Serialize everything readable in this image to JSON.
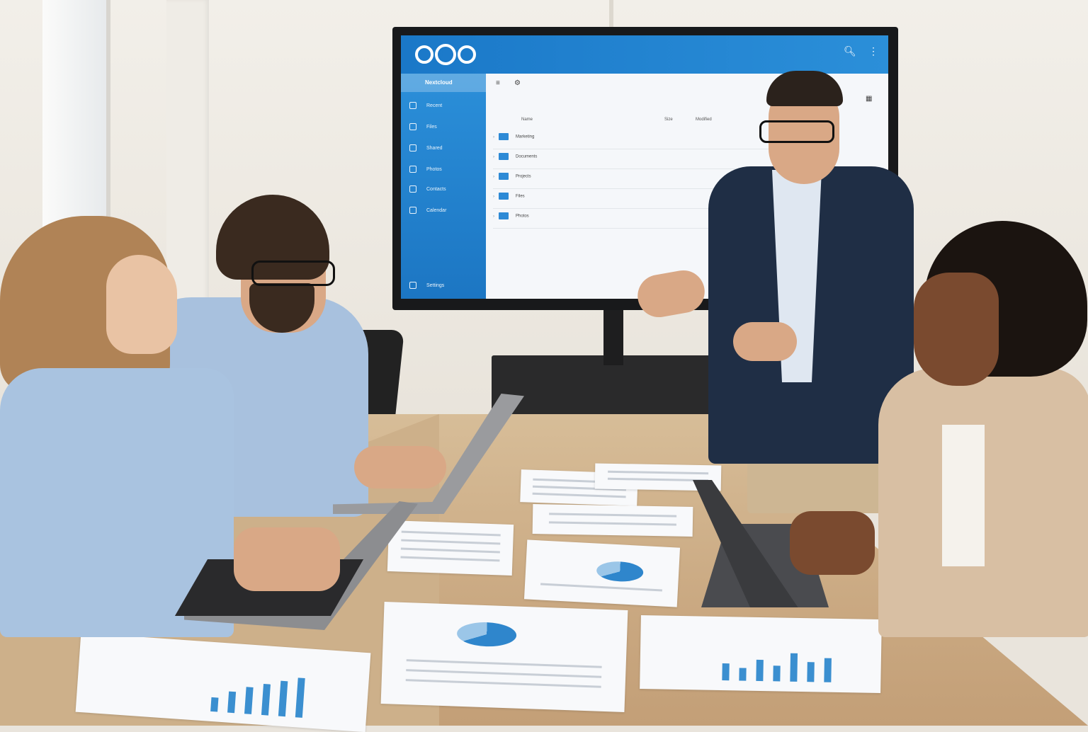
{
  "scene": "meeting-room-presentation",
  "screen_ui": {
    "sidebar": {
      "title": "Nextcloud",
      "items": [
        {
          "label": "Recent",
          "icon": "clock-icon"
        },
        {
          "label": "Files",
          "icon": "folder-icon"
        },
        {
          "label": "Shared",
          "icon": "share-icon"
        },
        {
          "label": "Photos",
          "icon": "image-icon"
        },
        {
          "label": "Contacts",
          "icon": "contacts-icon"
        },
        {
          "label": "Calendar",
          "icon": "calendar-icon"
        }
      ],
      "footer": "Settings"
    },
    "list": {
      "header_name": "Name",
      "header_size": "Size",
      "header_modified": "Modified",
      "rows": [
        {
          "name": "Marketing"
        },
        {
          "name": "Documents"
        },
        {
          "name": "Projects"
        },
        {
          "name": "Files"
        },
        {
          "name": "Photos"
        }
      ]
    }
  },
  "colors": {
    "accent": "#1a78c8",
    "sidebar": "#2b8fd9",
    "table": "#d7bd98"
  }
}
